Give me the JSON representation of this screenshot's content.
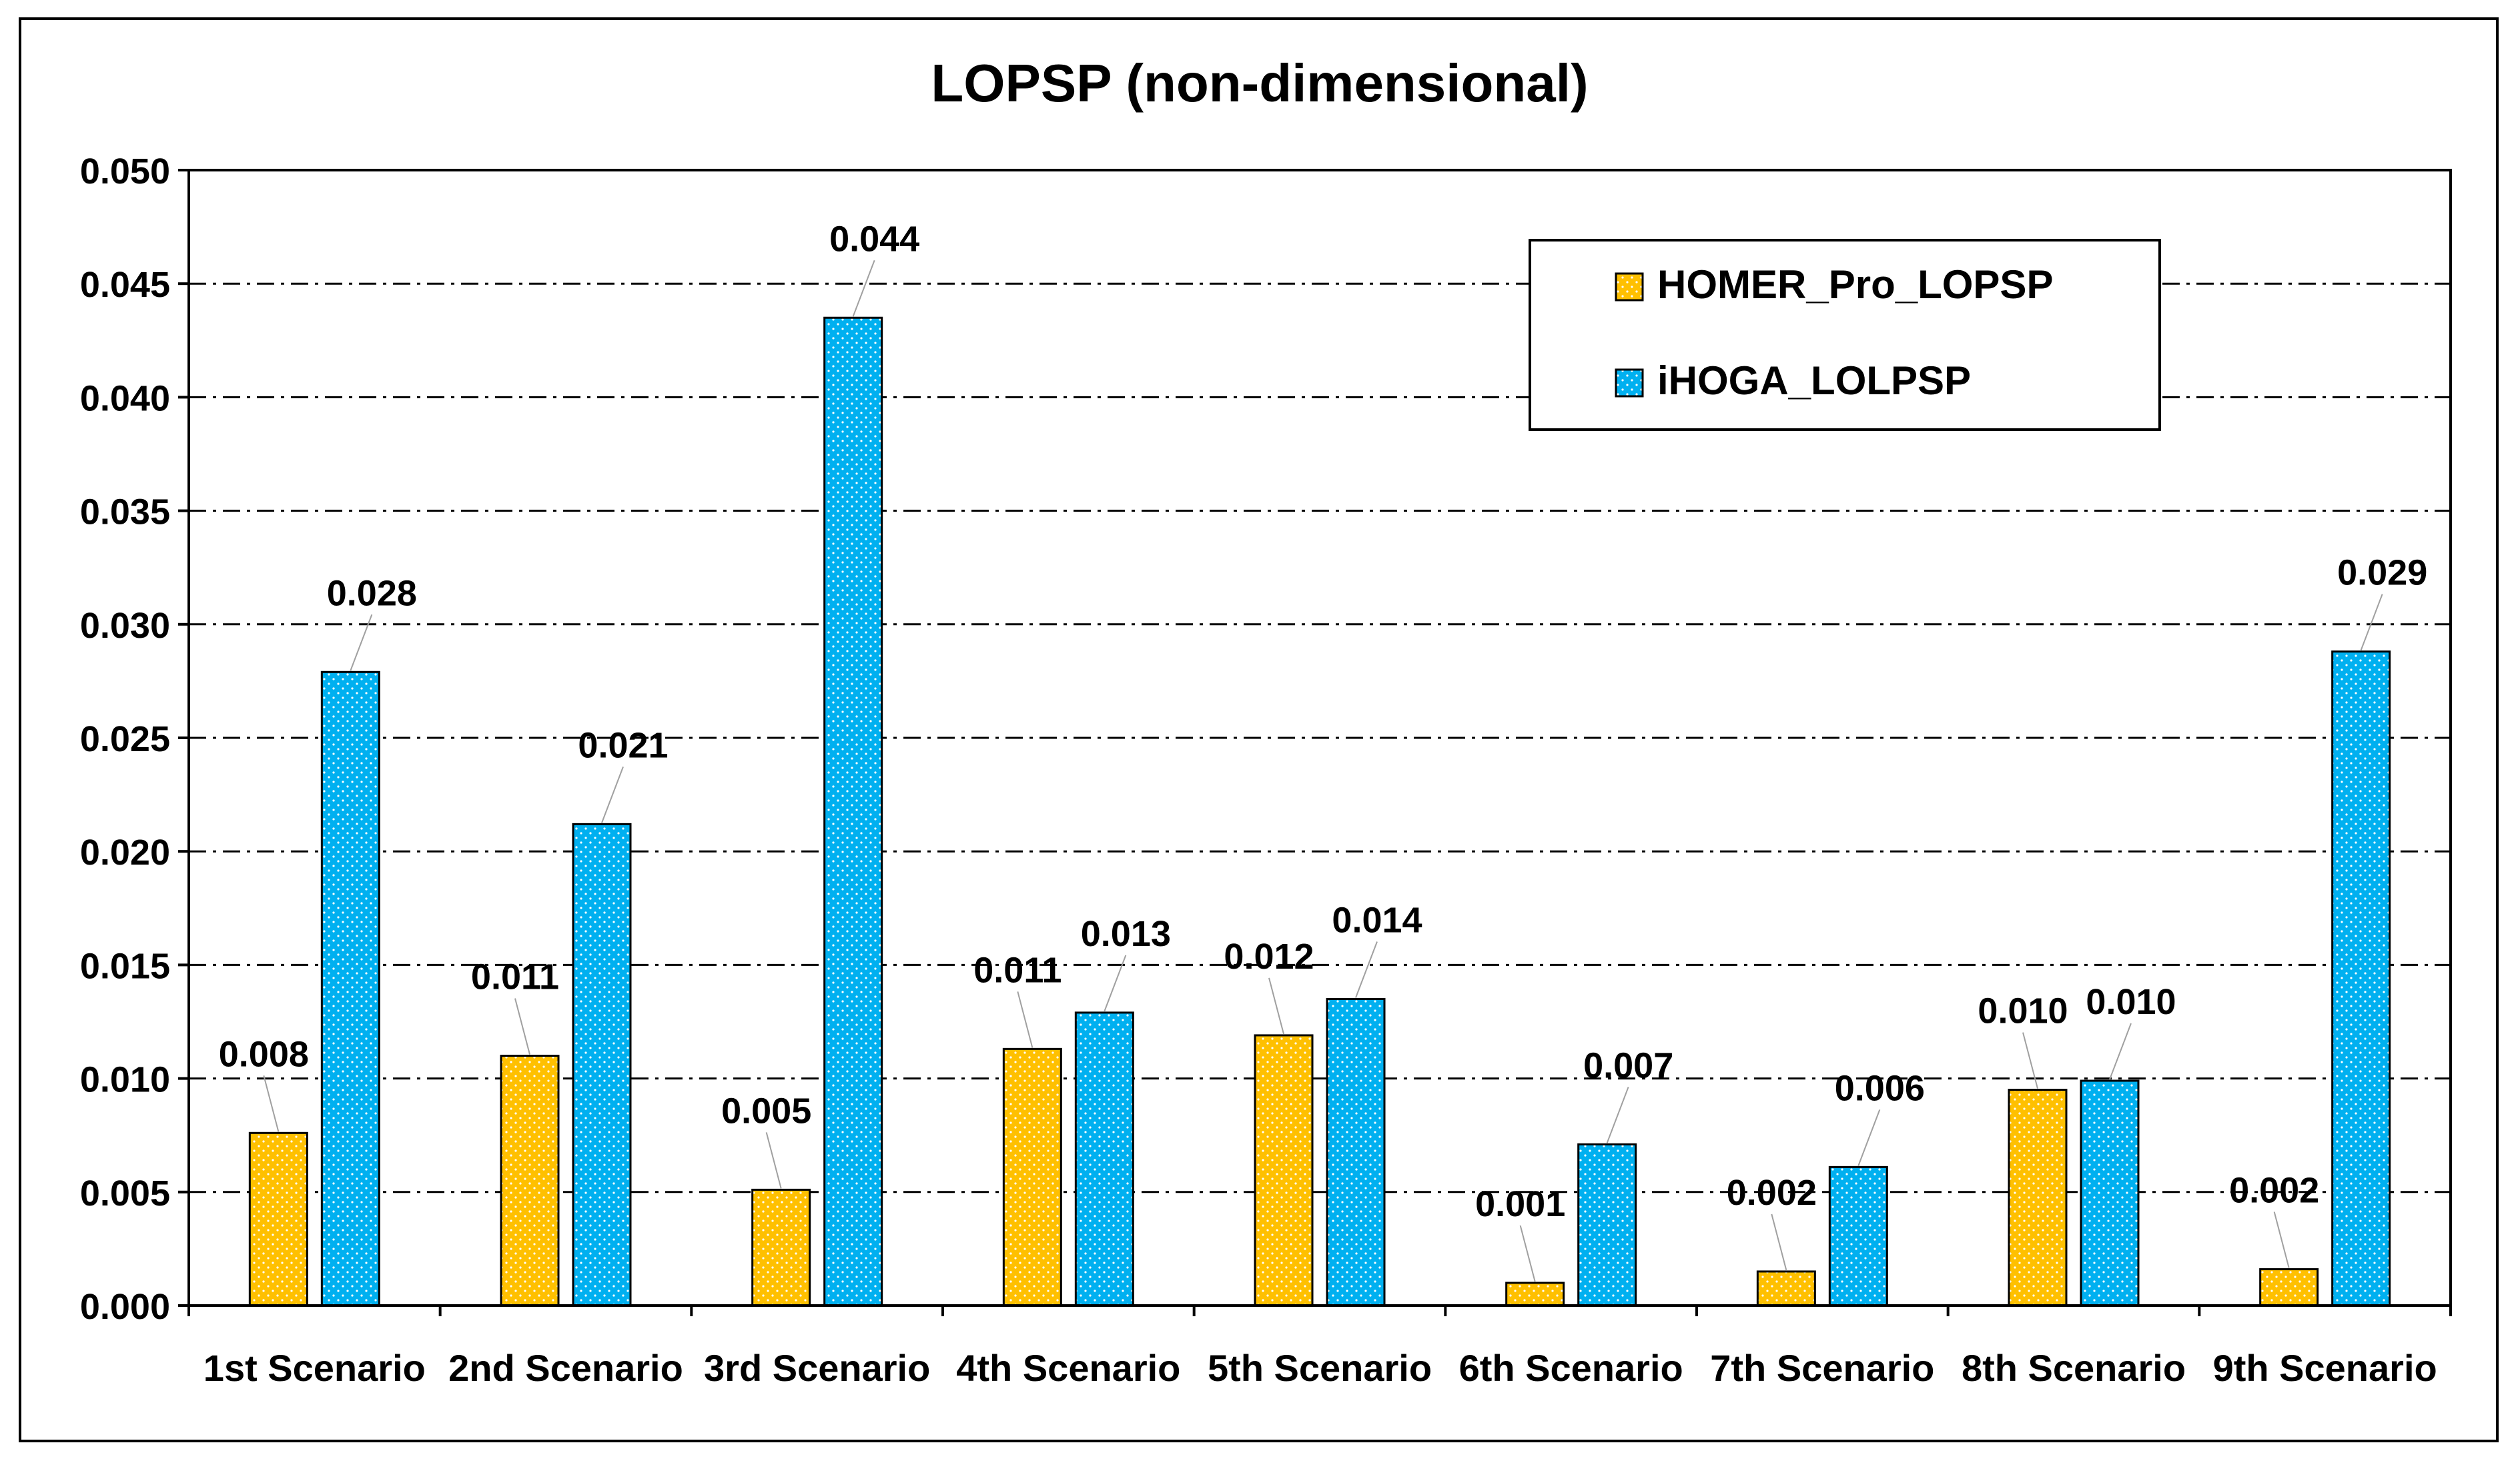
{
  "chart_data": {
    "type": "bar",
    "title": "LOPSP (non-dimensional)",
    "xlabel": "",
    "ylabel": "",
    "ylim": [
      0,
      0.05
    ],
    "ytick_step": 0.005,
    "ytick_labels": [
      "0.000",
      "0.005",
      "0.010",
      "0.015",
      "0.020",
      "0.025",
      "0.030",
      "0.035",
      "0.040",
      "0.045",
      "0.050"
    ],
    "grid": true,
    "legend_position": "top-right",
    "categories": [
      "1st Scenario",
      "2nd Scenario",
      "3rd Scenario",
      "4th Scenario",
      "5th Scenario",
      "6th Scenario",
      "7th Scenario",
      "8th Scenario",
      "9th Scenario"
    ],
    "series": [
      {
        "name": "HOMER_Pro_LOPSP",
        "color": "#FFC000",
        "values": [
          0.0076,
          0.011,
          0.0051,
          0.0113,
          0.0119,
          0.001,
          0.0015,
          0.0095,
          0.0016
        ],
        "labels": [
          "0.008",
          "0.011",
          "0.005",
          "0.011",
          "0.012",
          "0.001",
          "0.002",
          "0.010",
          "0.002"
        ]
      },
      {
        "name": "iHOGA_LOLPSP",
        "color": "#00B0F0",
        "values": [
          0.0279,
          0.0212,
          0.0435,
          0.0129,
          0.0135,
          0.0071,
          0.0061,
          0.0099,
          0.0288
        ],
        "labels": [
          "0.028",
          "0.021",
          "0.044",
          "0.013",
          "0.014",
          "0.007",
          "0.006",
          "0.010",
          "0.029"
        ]
      }
    ]
  }
}
